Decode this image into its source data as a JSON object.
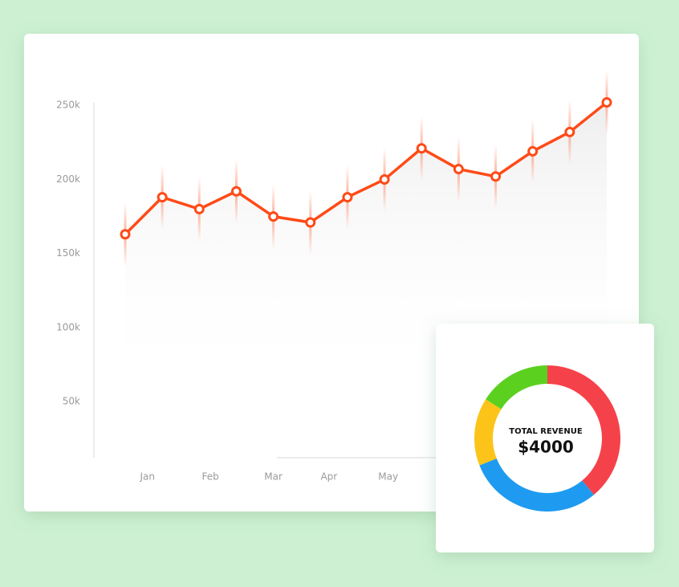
{
  "chart_data": [
    {
      "type": "line",
      "x": [
        0,
        1,
        2,
        3,
        4,
        5,
        6,
        7,
        8,
        9,
        10,
        11,
        12,
        13
      ],
      "xlim": [
        0,
        13
      ],
      "xticks": [
        {
          "value": 0.6,
          "label": "Jan"
        },
        {
          "value": 2.3,
          "label": "Feb"
        },
        {
          "value": 4,
          "label": "Mar"
        },
        {
          "value": 5.5,
          "label": "Apr"
        },
        {
          "value": 7.1,
          "label": "May"
        }
      ],
      "ylim": [
        10000,
        255000
      ],
      "yticks": [
        {
          "value": 50000,
          "label": "50k"
        },
        {
          "value": 100000,
          "label": "100k"
        },
        {
          "value": 150000,
          "label": "150k"
        },
        {
          "value": 200000,
          "label": "200k"
        },
        {
          "value": 250000,
          "label": "250k"
        }
      ],
      "color": "#ff4a17",
      "values": [
        163000,
        188000,
        180000,
        192000,
        175000,
        171000,
        188000,
        200000,
        221000,
        207000,
        202000,
        219000,
        232000,
        252000
      ]
    },
    {
      "type": "donut",
      "title": "TOTAL REVENUE",
      "subtitle": "$4000",
      "categories": [
        null,
        null,
        null,
        null
      ],
      "values": [
        39,
        30,
        15,
        16
      ],
      "colors": [
        "#f5424a",
        "#1e9bf0",
        "#fcc419",
        "#5cd01f"
      ]
    }
  ]
}
